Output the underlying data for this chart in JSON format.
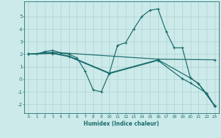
{
  "xlabel": "Humidex (Indice chaleur)",
  "bg_color": "#cceaea",
  "grid_color": "#b0d0d0",
  "line_color": "#1a6b6b",
  "xlim": [
    -0.5,
    23.5
  ],
  "ylim": [
    -2.7,
    6.2
  ],
  "xticks": [
    0,
    1,
    2,
    3,
    4,
    5,
    6,
    7,
    8,
    9,
    10,
    11,
    12,
    13,
    14,
    15,
    16,
    17,
    18,
    19,
    20,
    21,
    22,
    23
  ],
  "yticks": [
    -2,
    -1,
    0,
    1,
    2,
    3,
    4,
    5
  ],
  "line1_x": [
    0,
    1,
    2,
    3,
    4,
    5,
    6,
    7,
    8,
    9,
    10,
    11,
    12,
    13,
    14,
    15,
    16,
    17,
    18,
    19,
    20,
    21,
    22,
    23
  ],
  "line1_y": [
    2.0,
    2.0,
    2.2,
    2.3,
    2.1,
    2.0,
    1.7,
    0.65,
    -0.85,
    -1.0,
    0.5,
    2.7,
    2.9,
    4.0,
    5.0,
    5.5,
    5.6,
    3.8,
    2.5,
    2.5,
    0.1,
    -0.35,
    -1.15,
    -2.1
  ],
  "line2_x": [
    0,
    3,
    16,
    23
  ],
  "line2_y": [
    2.0,
    2.15,
    1.6,
    1.55
  ],
  "line3_x": [
    0,
    3,
    5,
    10,
    16,
    20,
    21,
    23
  ],
  "line3_y": [
    2.0,
    2.1,
    1.85,
    0.5,
    1.55,
    0.1,
    -0.35,
    -2.15
  ],
  "line4_x": [
    0,
    3,
    5,
    10,
    16,
    19,
    20,
    22,
    23
  ],
  "line4_y": [
    2.0,
    2.05,
    1.8,
    0.45,
    1.5,
    0.05,
    -0.3,
    -1.1,
    -2.15
  ]
}
